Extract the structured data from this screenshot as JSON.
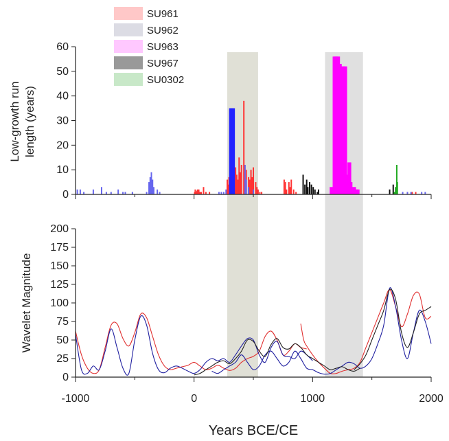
{
  "chart_data": [
    {
      "type": "bar",
      "ylabel_line1": "Low-growth run",
      "ylabel_line2": "length (years)",
      "xlim": [
        -1000,
        2000
      ],
      "ylim": [
        0,
        60
      ],
      "yticks": [
        "0",
        "10",
        "20",
        "30",
        "40",
        "50",
        "60"
      ],
      "grid": false,
      "legend_position": "top-left",
      "shaded_periods": [
        {
          "start": 280,
          "end": 540,
          "color": "#e0e0d6"
        },
        {
          "start": 1105,
          "end": 1425,
          "color": "#e0e0e0"
        }
      ],
      "series": [
        {
          "name": "SU961",
          "color": "#ff3333",
          "legend_fill": "#ffc8c8",
          "bars": [
            [
              5,
              1
            ],
            [
              10,
              2
            ],
            [
              15,
              1
            ],
            [
              20,
              1
            ],
            [
              25,
              1.5
            ],
            [
              30,
              2
            ],
            [
              40,
              2
            ],
            [
              50,
              1
            ],
            [
              60,
              1
            ],
            [
              80,
              3
            ],
            [
              100,
              1
            ],
            [
              130,
              1
            ],
            [
              280,
              6
            ],
            [
              290,
              4
            ],
            [
              295,
              7
            ],
            [
              300,
              3
            ],
            [
              330,
              5
            ],
            [
              340,
              9
            ],
            [
              350,
              11
            ],
            [
              360,
              8
            ],
            [
              370,
              6
            ],
            [
              380,
              15
            ],
            [
              390,
              9
            ],
            [
              400,
              12
            ],
            [
              420,
              38
            ],
            [
              440,
              10
            ],
            [
              460,
              7
            ],
            [
              470,
              6
            ],
            [
              480,
              10
            ],
            [
              490,
              7
            ],
            [
              500,
              11
            ],
            [
              520,
              5
            ],
            [
              530,
              3
            ],
            [
              540,
              2
            ],
            [
              555,
              1
            ],
            [
              570,
              1
            ],
            [
              760,
              6
            ],
            [
              770,
              5
            ],
            [
              780,
              2
            ],
            [
              800,
              5
            ],
            [
              810,
              3
            ],
            [
              820,
              6
            ],
            [
              840,
              2
            ],
            [
              860,
              1
            ],
            [
              1250,
              2
            ],
            [
              1275,
              7
            ],
            [
              1300,
              4
            ],
            [
              1340,
              2
            ],
            [
              1380,
              2
            ],
            [
              1800,
              1
            ],
            [
              1840,
              1
            ],
            [
              1870,
              1
            ]
          ]
        },
        {
          "name": "SU962",
          "color": "#6666ee",
          "legend_fill": "#dcdce4",
          "bars": [
            [
              -985,
              2
            ],
            [
              -960,
              2
            ],
            [
              -930,
              1
            ],
            [
              -850,
              2
            ],
            [
              -780,
              3
            ],
            [
              -740,
              1
            ],
            [
              -700,
              1
            ],
            [
              -640,
              2
            ],
            [
              -600,
              1
            ],
            [
              -580,
              1
            ],
            [
              -520,
              1
            ],
            [
              -400,
              1
            ],
            [
              -380,
              5
            ],
            [
              -370,
              7
            ],
            [
              -360,
              9
            ],
            [
              -350,
              6
            ],
            [
              -340,
              3
            ],
            [
              -310,
              2
            ],
            [
              -290,
              1
            ],
            [
              210,
              1
            ],
            [
              230,
              1
            ],
            [
              250,
              1
            ],
            [
              270,
              2
            ],
            [
              430,
              12
            ],
            [
              440,
              6
            ],
            [
              460,
              3
            ],
            [
              500,
              2
            ],
            [
              1320,
              3
            ],
            [
              1760,
              1
            ],
            [
              1800,
              1
            ],
            [
              1830,
              1
            ],
            [
              1920,
              1
            ],
            [
              1950,
              1
            ]
          ]
        },
        {
          "name": "SU963",
          "color": "#ff00ff",
          "legend_fill": "#ffc8ff",
          "bars": [
            [
              1160,
              3
            ],
            [
              1185,
              56
            ],
            [
              1200,
              56
            ],
            [
              1215,
              56
            ],
            [
              1230,
              53
            ],
            [
              1245,
              52
            ],
            [
              1260,
              52
            ],
            [
              1275,
              52
            ],
            [
              1300,
              8
            ],
            [
              1310,
              13
            ],
            [
              1320,
              5
            ],
            [
              1340,
              2
            ],
            [
              1350,
              3
            ],
            [
              1360,
              2
            ],
            [
              1380,
              2
            ]
          ]
        },
        {
          "name": "SU967",
          "color": "#111111",
          "legend_fill": "#999999",
          "bars": [
            [
              920,
              8
            ],
            [
              935,
              4
            ],
            [
              950,
              6
            ],
            [
              960,
              3
            ],
            [
              975,
              5
            ],
            [
              990,
              4
            ],
            [
              1005,
              3
            ],
            [
              1020,
              2
            ],
            [
              1040,
              1
            ],
            [
              1050,
              2
            ],
            [
              1650,
              2
            ],
            [
              1680,
              4
            ]
          ]
        },
        {
          "name": "SU0302",
          "color": "#22aa22",
          "legend_fill": "#c8e8c8",
          "bars": [
            [
              1690,
              1
            ],
            [
              1700,
              3
            ],
            [
              1710,
              12
            ],
            [
              1715,
              5
            ]
          ]
        },
        {
          "name": "",
          "color": "#2222ff",
          "legend_fill": "",
          "bars": [
            [
              310,
              35
            ],
            [
              320,
              35
            ],
            [
              330,
              35
            ]
          ]
        }
      ]
    },
    {
      "type": "line",
      "xlabel": "Years BCE/CE",
      "ylabel": "Wavelet Magnitude",
      "xlim": [
        -1000,
        2000
      ],
      "ylim": [
        0,
        200
      ],
      "xticks": [
        "-1000",
        "0",
        "1000",
        "2000"
      ],
      "yticks": [
        "0",
        "25",
        "50",
        "75",
        "100",
        "125",
        "150",
        "175",
        "200"
      ],
      "grid": false,
      "series": [
        {
          "color": "#e03030",
          "x": [
            -1000,
            -950,
            -900,
            -850,
            -800,
            -750,
            -700,
            -650,
            -600,
            -550,
            -500,
            -450,
            -400,
            -350,
            -300,
            -250,
            -200,
            -150,
            -100,
            -50,
            0,
            50,
            100,
            150,
            200,
            250,
            300,
            350,
            400,
            450,
            500,
            550,
            600,
            650,
            700,
            750,
            800,
            850,
            900,
            950
          ],
          "y": [
            62,
            30,
            12,
            5,
            10,
            40,
            70,
            72,
            52,
            42,
            60,
            85,
            80,
            55,
            30,
            15,
            10,
            12,
            14,
            16,
            20,
            15,
            10,
            12,
            16,
            12,
            9,
            12,
            20,
            25,
            28,
            35,
            55,
            62,
            50,
            30,
            35,
            45,
            40,
            38
          ]
        },
        {
          "color": "#e03030",
          "x": [
            900,
            925,
            950,
            1000,
            1050,
            1100,
            1150,
            1200,
            1250,
            1300,
            1350,
            1400,
            1450,
            1500,
            1550,
            1600,
            1650,
            1700,
            1750,
            1800,
            1850,
            1900,
            1950,
            2000
          ],
          "y": [
            72,
            50,
            42,
            30,
            20,
            12,
            5,
            5,
            8,
            10,
            12,
            20,
            40,
            60,
            80,
            100,
            118,
            95,
            68,
            85,
            110,
            112,
            80,
            82
          ]
        },
        {
          "color": "#2020a0",
          "x": [
            -1000,
            -950,
            -900,
            -850,
            -800,
            -750,
            -700,
            -650,
            -600,
            -550,
            -500,
            -450,
            -400,
            -350,
            -300,
            -250,
            -200,
            -150,
            -100,
            -50,
            0,
            50,
            100,
            150,
            200,
            250,
            300,
            350,
            400,
            450,
            500,
            550,
            600,
            650,
            700,
            750,
            800,
            850,
            900,
            950,
            1000
          ],
          "y": [
            58,
            10,
            5,
            15,
            10,
            35,
            65,
            40,
            12,
            5,
            50,
            82,
            70,
            32,
            10,
            6,
            12,
            15,
            12,
            8,
            5,
            10,
            20,
            25,
            22,
            25,
            20,
            30,
            42,
            52,
            50,
            30,
            20,
            40,
            48,
            30,
            28,
            25,
            35,
            30,
            22
          ]
        },
        {
          "color": "#2020a0",
          "x": [
            150,
            200,
            250,
            300,
            350,
            400,
            450,
            500,
            550,
            600,
            650,
            700,
            750,
            800,
            850,
            900,
            950,
            1000,
            1050,
            1100,
            1150,
            1200,
            1250,
            1300,
            1350,
            1400,
            1450,
            1500,
            1550,
            1600,
            1650,
            1700,
            1750,
            1800,
            1850,
            1900,
            1950,
            2000
          ],
          "y": [
            8,
            5,
            10,
            15,
            20,
            30,
            20,
            10,
            15,
            30,
            35,
            25,
            15,
            20,
            35,
            25,
            12,
            10,
            6,
            4,
            5,
            10,
            15,
            20,
            18,
            12,
            15,
            25,
            45,
            70,
            120,
            95,
            50,
            25,
            60,
            90,
            75,
            45
          ]
        },
        {
          "color": "#222222",
          "x": [
            0,
            50,
            100,
            150,
            200,
            250,
            300,
            350,
            400,
            450,
            500,
            550,
            600,
            650,
            700,
            750,
            800,
            850,
            900,
            950,
            1000,
            1050,
            1100,
            1150,
            1200,
            1250,
            1300,
            1350,
            1400
          ],
          "y": [
            3,
            5,
            10,
            15,
            20,
            22,
            18,
            25,
            35,
            50,
            48,
            35,
            28,
            44,
            52,
            40,
            38,
            45,
            40,
            30,
            25,
            20,
            15,
            10,
            12,
            14,
            10,
            8,
            12
          ]
        },
        {
          "color": "#222222",
          "x": [
            1350,
            1400,
            1450,
            1500,
            1550,
            1600,
            1650,
            1700,
            1750,
            1800,
            1850,
            1900,
            1950,
            2000
          ],
          "y": [
            10,
            18,
            30,
            50,
            70,
            90,
            118,
            105,
            60,
            40,
            60,
            85,
            90,
            95
          ]
        }
      ]
    }
  ]
}
